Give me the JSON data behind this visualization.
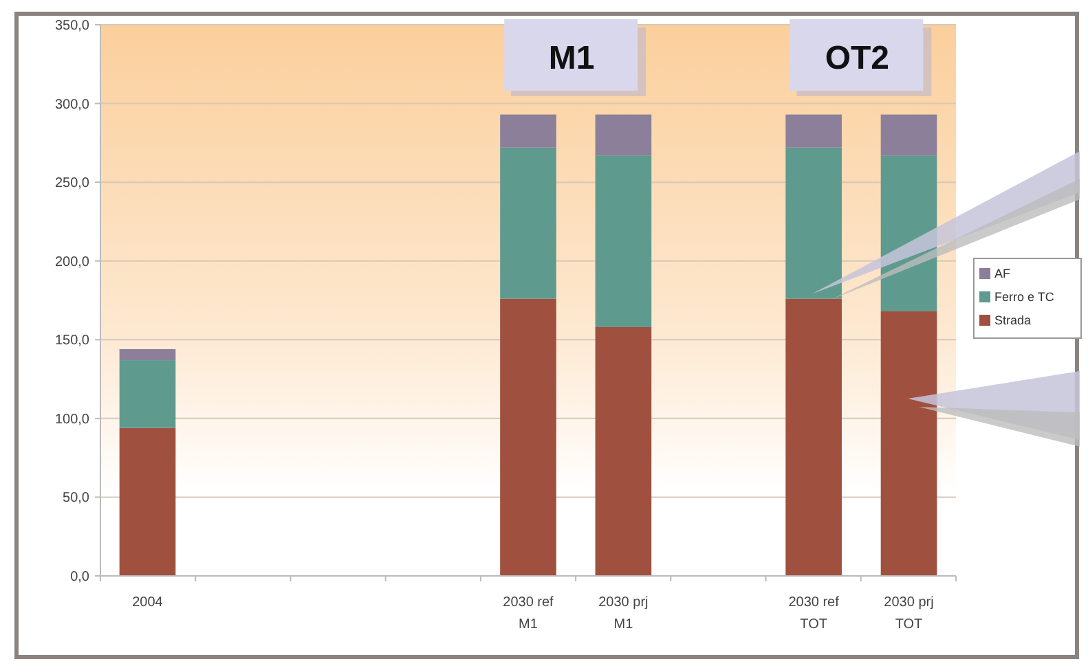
{
  "chart_data": {
    "type": "bar",
    "stacked": true,
    "categories": [
      "2004",
      null,
      null,
      null,
      "2030 ref\nM1",
      "2030 prj\nM1",
      null,
      "2030 ref\nTOT",
      "2030 prj\nTOT"
    ],
    "series": [
      {
        "name": "Strada",
        "color": "#a0503f",
        "values": [
          94,
          null,
          null,
          null,
          176,
          158,
          null,
          176,
          168
        ]
      },
      {
        "name": "Ferro e TC",
        "color": "#5f9a8e",
        "values": [
          43,
          null,
          null,
          null,
          96,
          109,
          null,
          96,
          99
        ]
      },
      {
        "name": "AF",
        "color": "#8c7f9a",
        "values": [
          7,
          null,
          null,
          null,
          21,
          26,
          null,
          21,
          26
        ]
      }
    ],
    "ylim": [
      0,
      350
    ],
    "yticks": [
      {
        "value": 0,
        "label": "0,0"
      },
      {
        "value": 50,
        "label": "50,0"
      },
      {
        "value": 100,
        "label": "100,0"
      },
      {
        "value": 150,
        "label": "150,0"
      },
      {
        "value": 200,
        "label": "200,0"
      },
      {
        "value": 250,
        "label": "250,0"
      },
      {
        "value": 300,
        "label": "300,0"
      },
      {
        "value": 350,
        "label": "350,0"
      }
    ],
    "grid": "y",
    "legend": "right",
    "annotations": [
      "M1",
      "OT2"
    ]
  }
}
